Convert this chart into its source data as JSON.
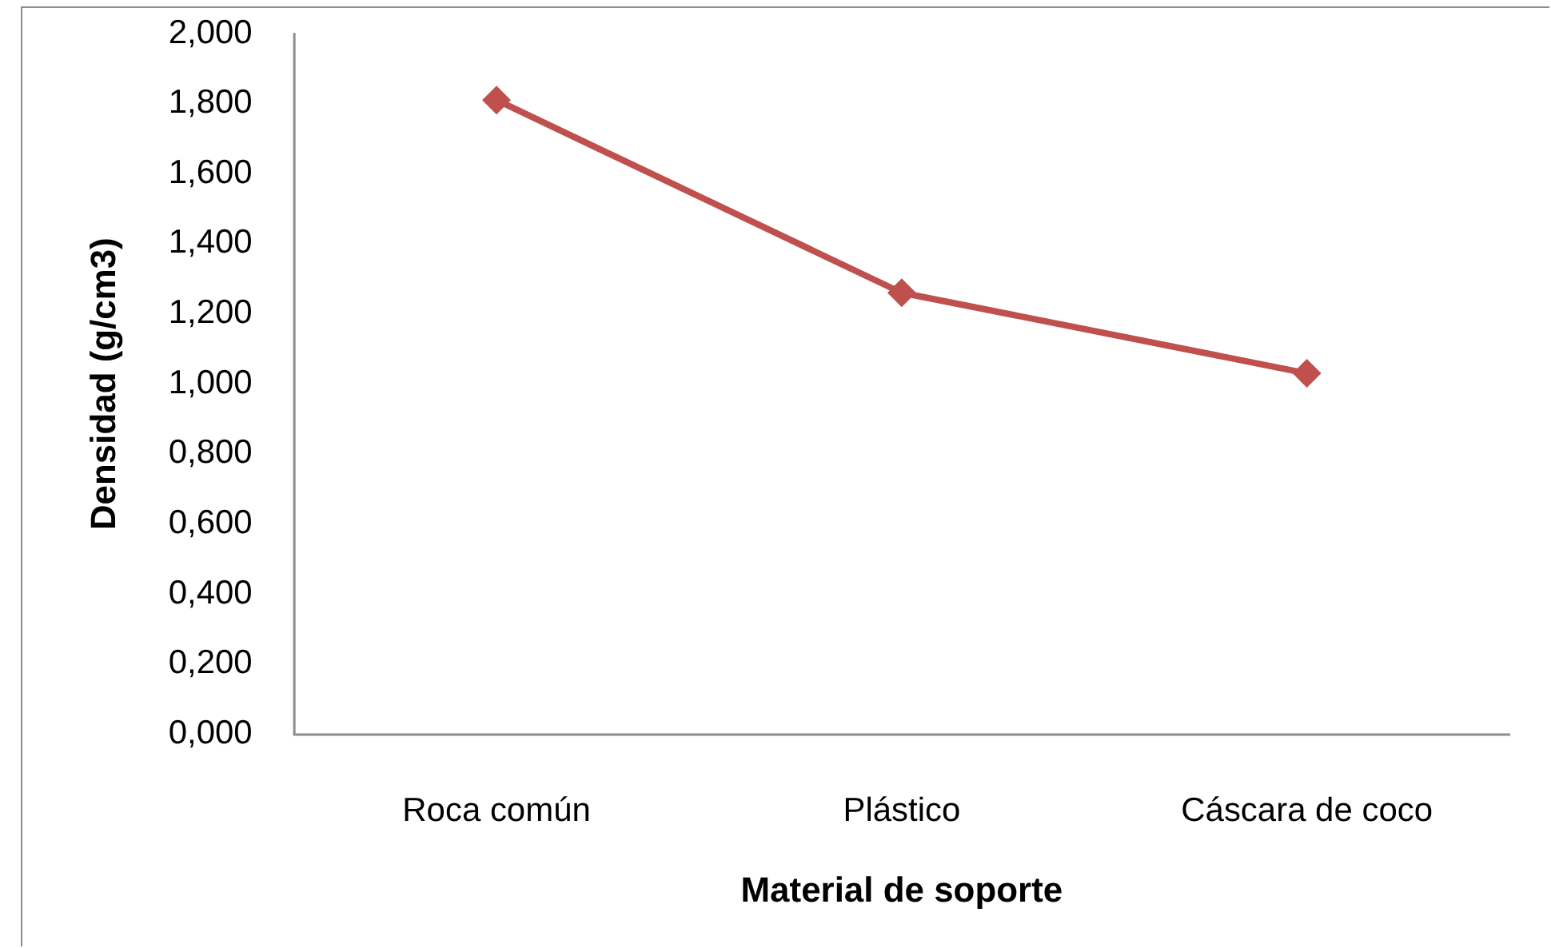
{
  "chart_data": {
    "type": "line",
    "xlabel": "Material de soporte",
    "ylabel": "Densidad (g/cm3)",
    "categories": [
      "Roca común",
      "Plástico",
      "Cáscara de coco"
    ],
    "values": [
      1.81,
      1.26,
      1.03
    ],
    "color": "#c0504d",
    "marker": "diamond",
    "line_style": "solid",
    "ylim": [
      0,
      2
    ],
    "yticks": [
      {
        "value": 0,
        "label": "0,000"
      },
      {
        "value": 0.2,
        "label": "0,200"
      },
      {
        "value": 0.4,
        "label": "0,400"
      },
      {
        "value": 0.6,
        "label": "0,600"
      },
      {
        "value": 0.8,
        "label": "0,800"
      },
      {
        "value": 1,
        "label": "1,000"
      },
      {
        "value": 1.2,
        "label": "1,200"
      },
      {
        "value": 1.4,
        "label": "1,400"
      },
      {
        "value": 1.6,
        "label": "1,600"
      },
      {
        "value": 1.8,
        "label": "1,800"
      },
      {
        "value": 2,
        "label": "2,000"
      }
    ]
  }
}
